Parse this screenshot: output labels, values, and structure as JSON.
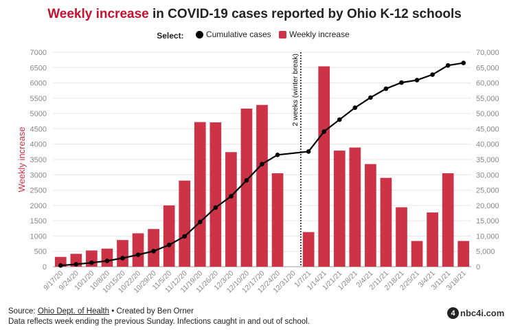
{
  "title": {
    "accent": "Weekly increase",
    "rest": " in COVID-19 cases reported by Ohio K-12 schools"
  },
  "legend": {
    "select_label": "Select:",
    "items": [
      {
        "name": "Cumulative cases",
        "color": "#000000",
        "shape": "dot"
      },
      {
        "name": "Weekly increase",
        "color": "#cc3347",
        "shape": "square"
      }
    ]
  },
  "chart_data": {
    "type": "bar",
    "categories": [
      "9/17/20",
      "9/24/20",
      "10/1/20",
      "10/8/20",
      "10/15/20",
      "10/22/20",
      "10/29/20",
      "11/5/20",
      "11/12/20",
      "11/19/20",
      "11/26/20",
      "12/3/20",
      "12/10/20",
      "12/17/20",
      "12/24/20",
      "12/31/20",
      "1/7/21",
      "1/14/21",
      "1/21/21",
      "1/28/21",
      "2/4/21",
      "2/11/21",
      "2/18/21",
      "2/25/21",
      "3/4/21",
      "3/11/21",
      "3/18/21"
    ],
    "series": [
      {
        "name": "Weekly increase",
        "type": "bar",
        "axis": "left",
        "color": "#cc3347",
        "values": [
          320,
          420,
          530,
          590,
          870,
          1090,
          1230,
          2000,
          2810,
          4720,
          4710,
          3740,
          5160,
          5280,
          3050,
          null,
          1130,
          6540,
          3790,
          3890,
          3350,
          2900,
          1940,
          840,
          1770,
          3050,
          840
        ]
      },
      {
        "name": "Cumulative cases",
        "type": "line",
        "axis": "right",
        "color": "#000000",
        "values": [
          400,
          800,
          1300,
          1900,
          2800,
          3900,
          5100,
          7100,
          9900,
          14600,
          19300,
          23000,
          28200,
          33500,
          36500,
          null,
          37600,
          44100,
          48000,
          51900,
          55200,
          58100,
          60100,
          60900,
          62700,
          65700,
          66500
        ]
      }
    ],
    "ylabel": "Weekly increase",
    "ylim": [
      0,
      7000
    ],
    "y_ticks": [
      "0",
      "500",
      "1000",
      "1500",
      "2000",
      "2500",
      "3000",
      "3500",
      "4000",
      "4500",
      "5000",
      "5500",
      "6000",
      "6500",
      "7000"
    ],
    "y2lim": [
      0,
      70000
    ],
    "y2_ticks": [
      "0",
      "5,000",
      "10,000",
      "15,000",
      "20,000",
      "25,000",
      "30,000",
      "35,000",
      "40,000",
      "45,000",
      "50,000",
      "55,000",
      "60,000",
      "65,000",
      "70,000"
    ],
    "grid": true,
    "annotation": {
      "text": "2 weeks (winter break)",
      "between": [
        "12/31/20",
        "1/7/21"
      ]
    }
  },
  "footer": {
    "source_prefix": "Source: ",
    "source_link": "Ohio Dept. of Health",
    "credit": " • Created by Ben Orner",
    "note": "Data reflects week ending the previous Sunday. Infections caught in and out of school."
  },
  "logo": {
    "badge": "4",
    "text": "nbc4i.com"
  }
}
